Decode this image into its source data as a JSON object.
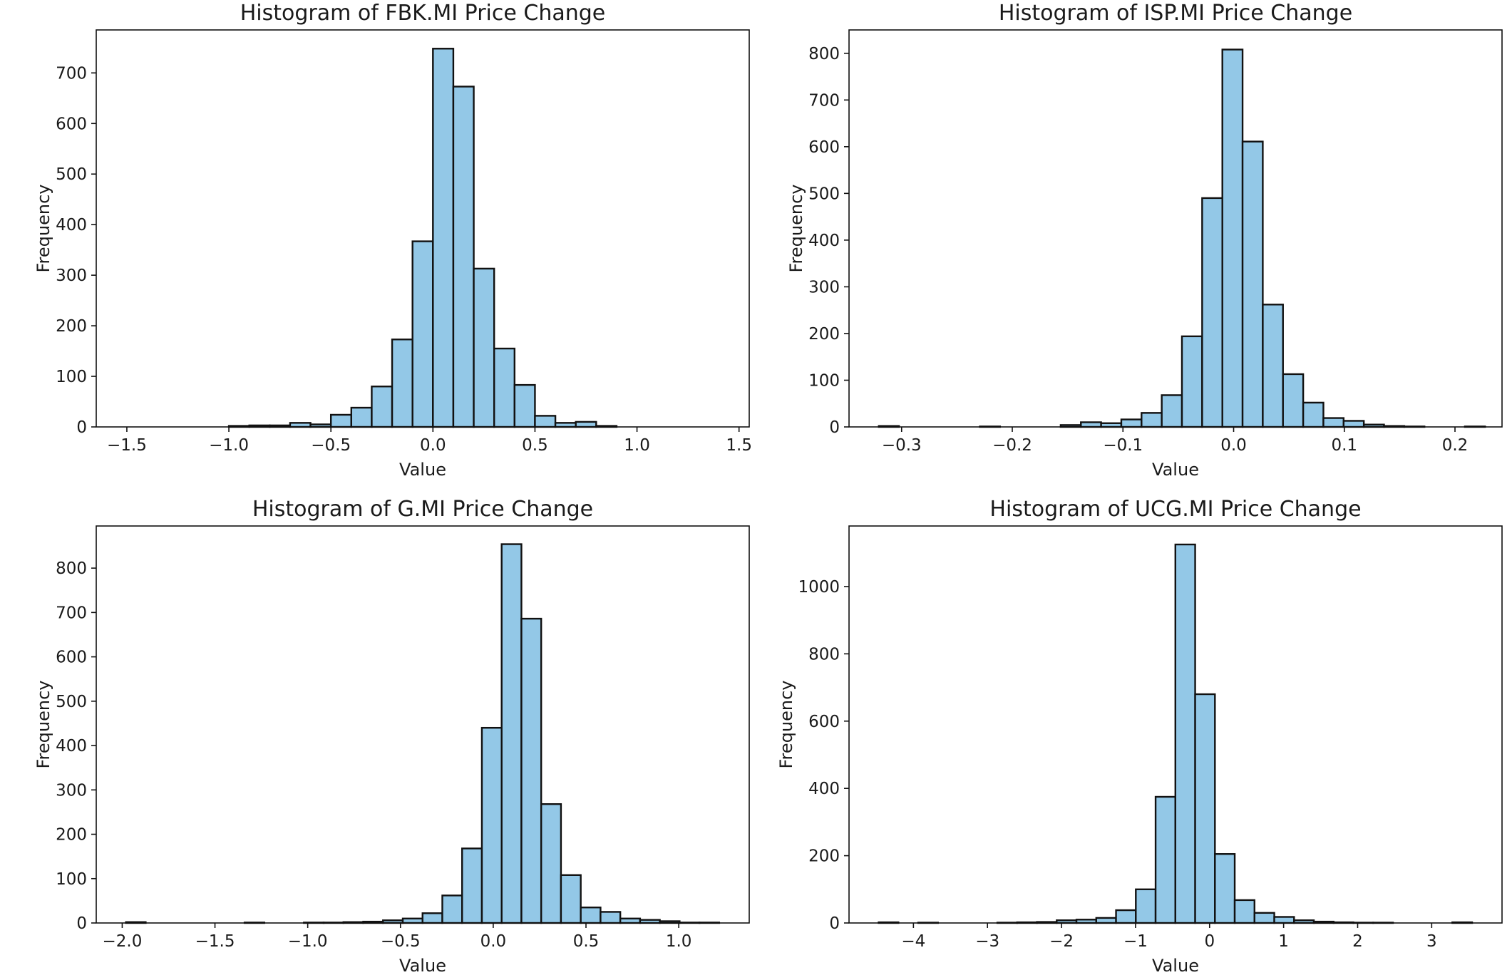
{
  "chart_data": [
    {
      "type": "bar",
      "title": "Histogram of FBK.MI Price Change",
      "xlabel": "Value",
      "ylabel": "Frequency",
      "xlim": [
        -1.65,
        1.55
      ],
      "ylim": [
        0,
        785
      ],
      "xticks": [
        -1.5,
        -1.0,
        -0.5,
        0.0,
        0.5,
        1.0,
        1.5
      ],
      "xtick_labels": [
        "−1.5",
        "−1.0",
        "−0.5",
        "0.0",
        "0.5",
        "1.0",
        "1.5"
      ],
      "yticks": [
        0,
        100,
        200,
        300,
        400,
        500,
        600,
        700
      ],
      "ytick_labels": [
        "0",
        "100",
        "200",
        "300",
        "400",
        "500",
        "600",
        "700"
      ],
      "bin_start": -1.5,
      "bin_width": 0.1,
      "values": [
        0,
        0,
        0,
        0,
        0,
        2,
        3,
        3,
        8,
        5,
        24,
        38,
        80,
        173,
        367,
        748,
        673,
        313,
        155,
        83,
        22,
        8,
        10,
        2,
        0,
        0,
        0,
        0,
        0,
        0
      ]
    },
    {
      "type": "bar",
      "title": "Histogram of ISP.MI Price Change",
      "xlabel": "Value",
      "ylabel": "Frequency",
      "xlim": [
        -0.3475,
        0.2425
      ],
      "ylim": [
        0,
        850
      ],
      "xticks": [
        -0.3,
        -0.2,
        -0.1,
        0.0,
        0.1,
        0.2
      ],
      "xtick_labels": [
        "−0.3",
        "−0.2",
        "−0.1",
        "0.0",
        "0.1",
        "0.2"
      ],
      "yticks": [
        0,
        100,
        200,
        300,
        400,
        500,
        600,
        700,
        800
      ],
      "ytick_labels": [
        "0",
        "100",
        "200",
        "300",
        "400",
        "500",
        "600",
        "700",
        "800"
      ],
      "bin_start": -0.3206,
      "bin_width": 0.01826,
      "values": [
        2,
        0,
        0,
        0,
        0,
        1,
        0,
        0,
        0,
        4,
        10,
        8,
        16,
        30,
        68,
        194,
        490,
        808,
        611,
        262,
        113,
        52,
        19,
        13,
        5,
        2,
        1,
        0,
        0,
        1
      ]
    },
    {
      "type": "bar",
      "title": "Histogram of G.MI Price Change",
      "xlabel": "Value",
      "ylabel": "Frequency",
      "xlim": [
        -2.14,
        1.38
      ],
      "ylim": [
        0,
        895
      ],
      "xticks": [
        -2.0,
        -1.5,
        -1.0,
        -0.5,
        0.0,
        0.5,
        1.0
      ],
      "xtick_labels": [
        "−2.0",
        "−1.5",
        "−1.0",
        "−0.5",
        "0.0",
        "0.5",
        "1.0"
      ],
      "yticks": [
        0,
        100,
        200,
        300,
        400,
        500,
        600,
        700,
        800
      ],
      "ytick_labels": [
        "0",
        "100",
        "200",
        "300",
        "400",
        "500",
        "600",
        "700",
        "800"
      ],
      "bin_start": -1.98,
      "bin_width": 0.1066,
      "values": [
        2,
        0,
        0,
        0,
        0,
        0,
        1,
        0,
        0,
        1,
        1,
        2,
        3,
        6,
        10,
        22,
        62,
        168,
        440,
        854,
        686,
        268,
        108,
        35,
        25,
        10,
        7,
        4,
        1,
        1
      ]
    },
    {
      "type": "bar",
      "title": "Histogram of UCG.MI Price Change",
      "xlabel": "Value",
      "ylabel": "Frequency",
      "xlim": [
        -4.87,
        3.95
      ],
      "ylim": [
        0,
        1180
      ],
      "xticks": [
        -4,
        -3,
        -2,
        -1,
        0,
        1,
        2,
        3
      ],
      "xtick_labels": [
        "−4",
        "−3",
        "−2",
        "−1",
        "0",
        "1",
        "2",
        "3"
      ],
      "yticks": [
        0,
        200,
        400,
        600,
        800,
        1000
      ],
      "ytick_labels": [
        "0",
        "200",
        "400",
        "600",
        "800",
        "1000"
      ],
      "bin_start": -4.47,
      "bin_width": 0.2672,
      "values": [
        2,
        0,
        1,
        0,
        0,
        0,
        1,
        2,
        3,
        8,
        10,
        15,
        38,
        100,
        375,
        1125,
        680,
        205,
        68,
        30,
        18,
        8,
        4,
        2,
        1,
        1,
        0,
        0,
        0,
        2
      ]
    }
  ]
}
